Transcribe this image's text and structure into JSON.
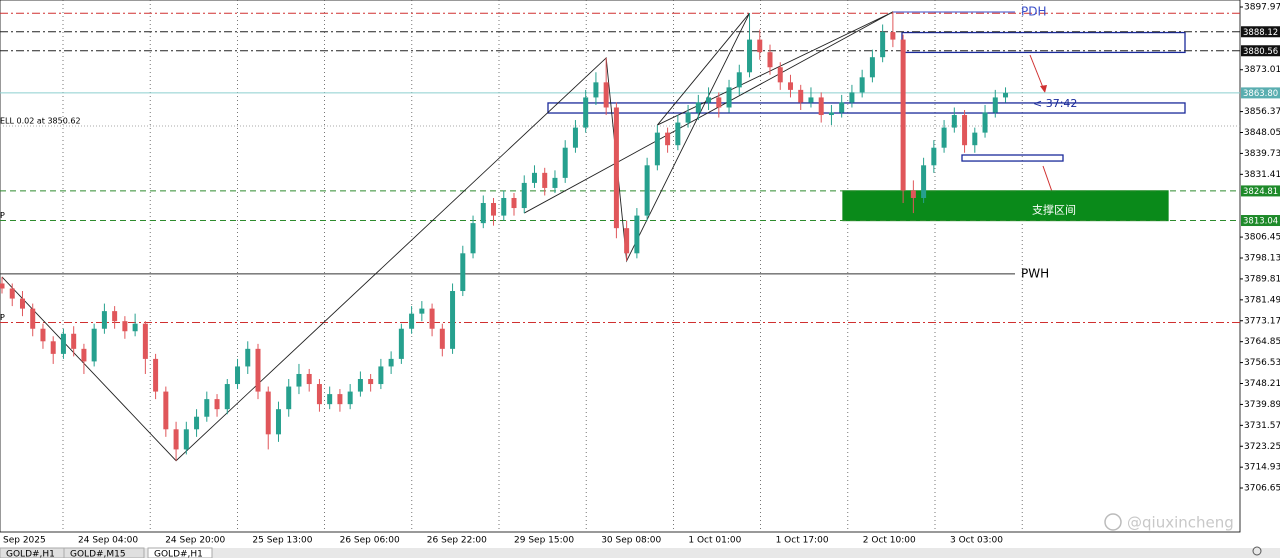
{
  "chart_data": {
    "type": "candlestick",
    "up_color": "#26a08e",
    "down_color": "#e0565a",
    "ylim": [
      3689.15,
      3900.75
    ],
    "yticks": [
      3897.97,
      3873.01,
      3856.37,
      3848.05,
      3839.73,
      3831.41,
      3806.45,
      3798.13,
      3789.81,
      3781.49,
      3773.17,
      3764.85,
      3756.53,
      3748.21,
      3739.89,
      3731.57,
      3723.25,
      3714.93,
      3706.65
    ],
    "xticks": [
      "Sep 2025",
      "24 Sep 04:00",
      "24 Sep 20:00",
      "25 Sep 13:00",
      "26 Sep 06:00",
      "26 Sep 22:00",
      "29 Sep 15:00",
      "30 Sep 08:00",
      "1 Oct 01:00",
      "1 Oct 17:00",
      "2 Oct 10:00",
      "3 Oct 03:00"
    ],
    "candles": [
      [
        3788,
        3790.6,
        3784,
        3786
      ],
      [
        3786,
        3788,
        3779,
        3782
      ],
      [
        3782,
        3785,
        3775,
        3778
      ],
      [
        3778,
        3780,
        3767,
        3770
      ],
      [
        3770,
        3772,
        3762,
        3765
      ],
      [
        3765,
        3767,
        3756,
        3760
      ],
      [
        3760,
        3770,
        3758,
        3768
      ],
      [
        3768,
        3771,
        3759,
        3762
      ],
      [
        3762,
        3764,
        3752,
        3757
      ],
      [
        3757,
        3772,
        3755,
        3770
      ],
      [
        3770,
        3780,
        3768,
        3777
      ],
      [
        3777,
        3779,
        3770,
        3773
      ],
      [
        3773,
        3775,
        3766,
        3769
      ],
      [
        3769,
        3776,
        3767,
        3772
      ],
      [
        3772,
        3773,
        3752,
        3758
      ],
      [
        3758,
        3760,
        3742,
        3745
      ],
      [
        3745,
        3747,
        3727,
        3730
      ],
      [
        3730,
        3733,
        3717.5,
        3722
      ],
      [
        3722,
        3733,
        3720,
        3730
      ],
      [
        3730,
        3738,
        3727,
        3735
      ],
      [
        3735,
        3745,
        3733,
        3742
      ],
      [
        3742,
        3744,
        3735,
        3738
      ],
      [
        3738,
        3750,
        3736,
        3748
      ],
      [
        3748,
        3758,
        3746,
        3755
      ],
      [
        3755,
        3765,
        3752,
        3762
      ],
      [
        3762,
        3764,
        3742,
        3745
      ],
      [
        3745,
        3747,
        3722,
        3728
      ],
      [
        3728,
        3741,
        3725,
        3738
      ],
      [
        3738,
        3750,
        3735,
        3747
      ],
      [
        3747,
        3756,
        3744,
        3752
      ],
      [
        3752,
        3754,
        3745,
        3748
      ],
      [
        3748,
        3750,
        3737,
        3740
      ],
      [
        3740,
        3747,
        3738,
        3744
      ],
      [
        3744,
        3746,
        3737,
        3740
      ],
      [
        3740,
        3748,
        3738,
        3745
      ],
      [
        3745,
        3753,
        3743,
        3750
      ],
      [
        3750,
        3752,
        3745,
        3748
      ],
      [
        3748,
        3758,
        3746,
        3755
      ],
      [
        3755,
        3761,
        3752,
        3758
      ],
      [
        3758,
        3772,
        3756,
        3770
      ],
      [
        3770,
        3779,
        3768,
        3776
      ],
      [
        3776,
        3781,
        3773,
        3778
      ],
      [
        3778,
        3780,
        3767,
        3770
      ],
      [
        3770,
        3772,
        3759,
        3762
      ],
      [
        3762,
        3788,
        3760,
        3785
      ],
      [
        3785,
        3803,
        3783,
        3800
      ],
      [
        3800,
        3815,
        3798,
        3812
      ],
      [
        3812,
        3823,
        3810,
        3820
      ],
      [
        3820,
        3822,
        3811,
        3815
      ],
      [
        3815,
        3825,
        3813,
        3822
      ],
      [
        3822,
        3824,
        3815,
        3818
      ],
      [
        3818,
        3831,
        3816,
        3828
      ],
      [
        3828,
        3835,
        3826,
        3832
      ],
      [
        3832,
        3834,
        3823,
        3826
      ],
      [
        3826,
        3833,
        3824,
        3830
      ],
      [
        3830,
        3845,
        3828,
        3842
      ],
      [
        3842,
        3853,
        3840,
        3850
      ],
      [
        3850,
        3865,
        3848,
        3862
      ],
      [
        3862,
        3872,
        3859,
        3868
      ],
      [
        3868,
        3877.7,
        3855,
        3858
      ],
      [
        3858,
        3860,
        3806,
        3810
      ],
      [
        3810,
        3813,
        3797,
        3800
      ],
      [
        3800,
        3818,
        3798,
        3815
      ],
      [
        3815,
        3838,
        3813,
        3835
      ],
      [
        3835,
        3851,
        3833,
        3848
      ],
      [
        3848,
        3850,
        3840,
        3843
      ],
      [
        3843,
        3855,
        3841,
        3852
      ],
      [
        3852,
        3859,
        3850,
        3856
      ],
      [
        3856,
        3863,
        3853,
        3860
      ],
      [
        3860,
        3866,
        3857,
        3862
      ],
      [
        3862,
        3864,
        3854,
        3858
      ],
      [
        3858,
        3869,
        3856,
        3866
      ],
      [
        3866,
        3875,
        3863,
        3872
      ],
      [
        3872,
        3895.5,
        3870,
        3885
      ],
      [
        3885,
        3889,
        3877,
        3880
      ],
      [
        3880,
        3883,
        3871,
        3874
      ],
      [
        3874,
        3876,
        3865,
        3868
      ],
      [
        3868,
        3871,
        3862,
        3865
      ],
      [
        3865,
        3867,
        3857,
        3860
      ],
      [
        3860,
        3866,
        3858,
        3862
      ],
      [
        3862,
        3864,
        3852,
        3855
      ],
      [
        3855,
        3859,
        3851,
        3856
      ],
      [
        3856,
        3863,
        3854,
        3860
      ],
      [
        3860,
        3867,
        3858,
        3864
      ],
      [
        3864,
        3873,
        3862,
        3870
      ],
      [
        3870,
        3881,
        3868,
        3878
      ],
      [
        3878,
        3891,
        3876,
        3888
      ],
      [
        3888,
        3896,
        3882,
        3885
      ],
      [
        3885,
        3887,
        3820,
        3825
      ],
      [
        3825,
        3829,
        3816,
        3822
      ],
      [
        3822,
        3838,
        3820,
        3835
      ],
      [
        3835,
        3845,
        3832,
        3842
      ],
      [
        3842,
        3853,
        3840,
        3850
      ],
      [
        3850,
        3858,
        3848,
        3855
      ],
      [
        3855,
        3857,
        3840,
        3843
      ],
      [
        3843,
        3850,
        3840,
        3848
      ],
      [
        3848,
        3859,
        3846,
        3856
      ],
      [
        3856,
        3865,
        3854,
        3862
      ],
      [
        3862,
        3866,
        3860,
        3863.8
      ]
    ],
    "zigzag": [
      3790.6,
      3717.5,
      3877.7,
      3797,
      3895.5,
      3851,
      3896,
      3816
    ],
    "levels": [
      {
        "value": 3895.5,
        "color": "#d03030",
        "style": "dashdot"
      },
      {
        "value": 3888.12,
        "color": "#222222",
        "style": "dashdot"
      },
      {
        "value": 3880.56,
        "color": "#222222",
        "style": "dashdot"
      },
      {
        "value": 3863.8,
        "color": "#8ccfcf",
        "style": "solid"
      },
      {
        "value": 3850.62,
        "color": "#aaaaaa",
        "style": "dotted",
        "label": "ELL 0.02 at 3850.62",
        "label_side": "left"
      },
      {
        "value": 3824.81,
        "color": "#2e8b2e",
        "style": "dashed"
      },
      {
        "value": 3813.04,
        "color": "#2e8b2e",
        "style": "dashed",
        "label": "P",
        "label_side": "left"
      },
      {
        "value": 3772.5,
        "color": "#d03030",
        "style": "dashdot",
        "label": "P",
        "label_side": "left"
      },
      {
        "value": 3896,
        "color": "#3a4fc8",
        "style": "solid",
        "label": "PDH",
        "label_side": "right"
      },
      {
        "value": 3791.8,
        "color": "#333333",
        "style": "solid",
        "label": "PWH",
        "label_side": "right"
      }
    ],
    "price_tags": [
      {
        "value": 3888.12,
        "color": "#111111"
      },
      {
        "value": 3880.56,
        "color": "#111111"
      },
      {
        "value": 3863.8,
        "label": "3863.80",
        "color": "#5aaeb0"
      },
      {
        "value": 3824.81,
        "color": "#1e8a2a"
      },
      {
        "value": 3813.04,
        "color": "#1e8a2a"
      }
    ],
    "zones": [
      {
        "top": 3887.8,
        "bottom": 3879.9,
        "color": "#1a2a9a",
        "fill": false
      },
      {
        "top": 3859.8,
        "bottom": 3855.8,
        "color": "#1a2a9a",
        "fill": false
      },
      {
        "top": 3839.1,
        "bottom": 3836.7,
        "color": "#1a2a9a",
        "fill": false
      },
      {
        "top": 3824.81,
        "bottom": 3813.04,
        "color": "#0a8a1a",
        "fill": true,
        "label": "支撑区间"
      }
    ],
    "timer": "< 37:42",
    "watermark": "@qiuxincheng",
    "tabs": [
      "GOLD#,H1",
      "GOLD#,M15",
      "GOLD#,H1"
    ]
  }
}
